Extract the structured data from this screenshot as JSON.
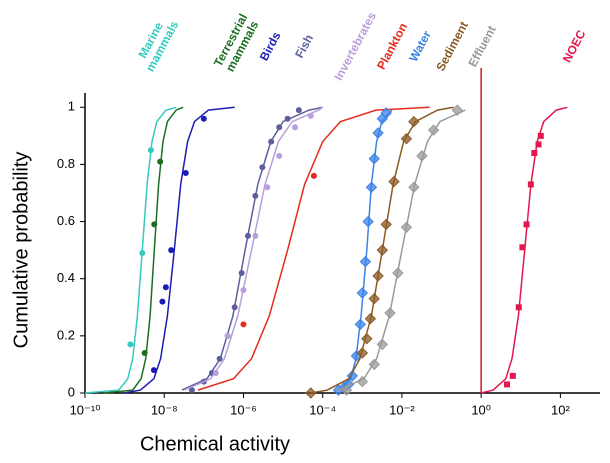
{
  "chart_data": {
    "type": "line",
    "x_scale": "log",
    "x_label": "Chemical activity",
    "y_label": "Cumulative probability",
    "xlim": [
      1e-10,
      1000
    ],
    "ylim": [
      0,
      1.05
    ],
    "xticks": [
      {
        "value": 1e-10,
        "label": "10⁻¹⁰"
      },
      {
        "value": 1e-08,
        "label": "10⁻⁸"
      },
      {
        "value": 1e-06,
        "label": "10⁻⁶"
      },
      {
        "value": 0.0001,
        "label": "10⁻⁴"
      },
      {
        "value": 0.01,
        "label": "10⁻²"
      },
      {
        "value": 1,
        "label": "10⁰"
      },
      {
        "value": 100,
        "label": "10²"
      }
    ],
    "yticks": [
      0,
      0.2,
      0.4,
      0.6,
      0.8,
      1
    ],
    "reference_line": {
      "x": 1,
      "color": "#d7191c"
    },
    "series": [
      {
        "name": "Marine mammals",
        "color": "#35c9c0",
        "marker": "circle",
        "x": [
          1e-10,
          7.1e-10,
          1.2e-09,
          1.6e-09,
          2.1e-09,
          2.8e-09,
          3.7e-09,
          4.9e-09,
          6.5e-09,
          1.1e-08,
          2e-08
        ],
        "values": [
          0,
          0.01,
          0.05,
          0.12,
          0.27,
          0.5,
          0.73,
          0.88,
          0.95,
          0.99,
          1
        ],
        "marker_x": [
          1.4e-09,
          2.8e-09,
          4.6e-09
        ],
        "marker_values": [
          0.17,
          0.49,
          0.85
        ]
      },
      {
        "name": "Terrestrial mammals",
        "color": "#1b6e20",
        "marker": "circle",
        "x": [
          3e-10,
          1.6e-09,
          2.6e-09,
          3.4e-09,
          4.4e-09,
          5.6e-09,
          7.2e-09,
          9.3e-09,
          1.2e-08,
          2e-08,
          3e-08
        ],
        "values": [
          0,
          0.01,
          0.05,
          0.12,
          0.27,
          0.5,
          0.73,
          0.88,
          0.95,
          0.99,
          1
        ],
        "marker_x": [
          3.2e-09,
          5.6e-09,
          7.9e-09
        ],
        "marker_values": [
          0.14,
          0.59,
          0.81
        ]
      },
      {
        "name": "Birds",
        "color": "#1c1cb5",
        "marker": "circle",
        "x": [
          1e-09,
          2.5e-09,
          5.5e-09,
          8.1e-09,
          1.2e-08,
          1.8e-08,
          2.6e-08,
          3.9e-08,
          5.8e-08,
          1.3e-07,
          6e-07
        ],
        "values": [
          0,
          0.01,
          0.05,
          0.12,
          0.27,
          0.5,
          0.73,
          0.88,
          0.95,
          0.99,
          1
        ],
        "marker_x": [
          5.5e-09,
          9e-09,
          1.1e-08,
          1.5e-08,
          3.5e-08,
          1e-07
        ],
        "marker_values": [
          0.08,
          0.32,
          0.37,
          0.5,
          0.77,
          0.96
        ]
      },
      {
        "name": "Fish",
        "color": "#5c5e9e",
        "marker": "circle",
        "x": [
          2.8e-08,
          1.2e-07,
          2.6e-07,
          5.4e-07,
          1.1e-06,
          2.3e-06,
          4.9e-06,
          1e-05,
          4.5e-05,
          0.0001
        ],
        "values": [
          0.01,
          0.05,
          0.12,
          0.27,
          0.5,
          0.73,
          0.88,
          0.95,
          0.99,
          1
        ],
        "marker_x": [
          5e-08,
          1e-07,
          1.6e-07,
          2.5e-07,
          4e-07,
          6e-07,
          9e-07,
          1.3e-06,
          2e-06,
          3e-06,
          5e-06,
          8e-06,
          1.3e-05,
          2.5e-05
        ],
        "marker_values": [
          0.01,
          0.04,
          0.07,
          0.12,
          0.2,
          0.3,
          0.42,
          0.55,
          0.69,
          0.79,
          0.88,
          0.93,
          0.96,
          0.99
        ]
      },
      {
        "name": "Invertebrates",
        "color": "#b89fdc",
        "marker": "circle",
        "x": [
          3.2e-08,
          1.5e-07,
          3.3e-07,
          7.2e-07,
          1.6e-06,
          3.5e-06,
          7.6e-06,
          1.7e-05,
          7.9e-05,
          0.0001
        ],
        "values": [
          0.01,
          0.05,
          0.12,
          0.27,
          0.5,
          0.73,
          0.88,
          0.95,
          0.99,
          1
        ],
        "marker_x": [
          2e-07,
          4e-07,
          1e-06,
          2e-06,
          4e-06,
          8e-06,
          2e-05,
          5e-05
        ],
        "marker_values": [
          0.07,
          0.2,
          0.36,
          0.55,
          0.72,
          0.83,
          0.93,
          0.97
        ]
      },
      {
        "name": "Plankton",
        "color": "#e8291c",
        "marker": "circle",
        "x": [
          7.1e-08,
          5.6e-07,
          1.6e-06,
          4.5e-06,
          1.3e-05,
          3.5e-05,
          0.0001,
          0.00028,
          0.0022,
          0.05
        ],
        "values": [
          0.01,
          0.05,
          0.12,
          0.27,
          0.5,
          0.73,
          0.88,
          0.95,
          0.99,
          1
        ],
        "marker_x": [
          1e-06,
          6e-05
        ],
        "marker_values": [
          0.24,
          0.76
        ]
      },
      {
        "name": "Water",
        "color": "#3b82e6",
        "marker": "diamond",
        "x": [
          0.00028,
          0.00051,
          0.00069,
          0.00093,
          0.0013,
          0.0017,
          0.0023,
          0.0031,
          0.0056
        ],
        "values": [
          0.01,
          0.05,
          0.12,
          0.27,
          0.5,
          0.73,
          0.88,
          0.95,
          0.99
        ],
        "marker_x": [
          0.00025,
          0.00035,
          0.00045,
          0.00056,
          0.00071,
          0.00089,
          0.001,
          0.0012,
          0.0014,
          0.0017,
          0.002,
          0.0025,
          0.0032,
          0.004
        ],
        "marker_values": [
          0.01,
          0.02,
          0.03,
          0.06,
          0.13,
          0.24,
          0.35,
          0.46,
          0.6,
          0.72,
          0.82,
          0.91,
          0.96,
          0.98
        ]
      },
      {
        "name": "Sediment",
        "color": "#8a5a24",
        "marker": "diamond",
        "x": [
          5e-05,
          0.00013,
          0.00046,
          0.00087,
          0.0017,
          0.0032,
          0.006,
          0.011,
          0.022,
          0.079,
          0.2
        ],
        "values": [
          0,
          0.01,
          0.05,
          0.12,
          0.27,
          0.5,
          0.73,
          0.88,
          0.95,
          0.99,
          1
        ],
        "marker_x": [
          5e-05,
          0.001,
          0.0013,
          0.0016,
          0.002,
          0.0025,
          0.0032,
          0.004,
          0.0063,
          0.013,
          0.02
        ],
        "marker_values": [
          0,
          0.14,
          0.19,
          0.26,
          0.33,
          0.41,
          0.5,
          0.59,
          0.74,
          0.89,
          0.95
        ]
      },
      {
        "name": "Effluent",
        "color": "#9a9a9a",
        "marker": "diamond",
        "x": [
          0.00025,
          0.0011,
          0.0023,
          0.0048,
          0.01,
          0.021,
          0.044,
          0.091,
          0.4
        ],
        "values": [
          0.01,
          0.05,
          0.12,
          0.27,
          0.5,
          0.73,
          0.88,
          0.95,
          0.99
        ],
        "marker_x": [
          0.0004,
          0.001,
          0.002,
          0.0032,
          0.005,
          0.0079,
          0.013,
          0.02,
          0.032,
          0.063,
          0.25
        ],
        "marker_values": [
          0.01,
          0.04,
          0.1,
          0.17,
          0.28,
          0.42,
          0.58,
          0.72,
          0.83,
          0.92,
          0.99
        ]
      },
      {
        "name": "NOEC",
        "color": "#e3174e",
        "marker": "square",
        "x": [
          1,
          2,
          4.2,
          6,
          8.7,
          12.6,
          18,
          26,
          38,
          79,
          150
        ],
        "values": [
          0,
          0.01,
          0.05,
          0.12,
          0.27,
          0.5,
          0.73,
          0.88,
          0.95,
          0.99,
          1
        ],
        "marker_x": [
          4.5,
          6.3,
          8.9,
          11,
          14,
          18,
          22,
          28,
          32
        ],
        "marker_values": [
          0.03,
          0.06,
          0.3,
          0.51,
          0.59,
          0.73,
          0.84,
          0.87,
          0.9
        ]
      }
    ]
  }
}
